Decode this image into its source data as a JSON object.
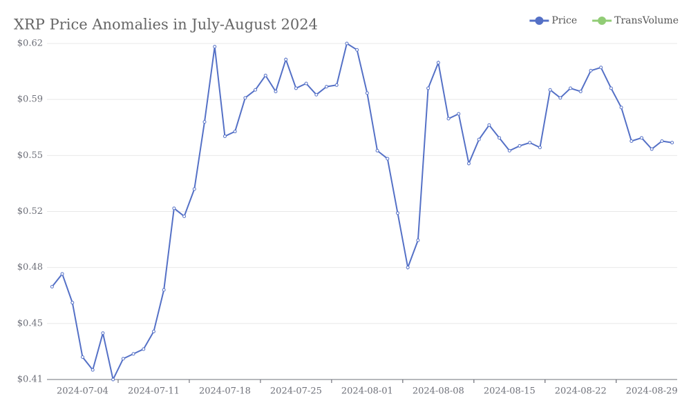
{
  "chart_data": {
    "type": "line",
    "title": "XRP Price Anomalies in July-August 2024",
    "categories": [
      null,
      null,
      null,
      "2024-07-04",
      null,
      null,
      null,
      null,
      null,
      null,
      "2024-07-11",
      null,
      null,
      null,
      null,
      null,
      null,
      "2024-07-18",
      null,
      null,
      null,
      null,
      null,
      null,
      "2024-07-25",
      null,
      null,
      null,
      null,
      null,
      null,
      "2024-08-01",
      null,
      null,
      null,
      null,
      null,
      null,
      "2024-08-08",
      null,
      null,
      null,
      null,
      null,
      null,
      "2024-08-15",
      null,
      null,
      null,
      null,
      null,
      null,
      "2024-08-22",
      null,
      null,
      null,
      null,
      null,
      null,
      "2024-08-29",
      null,
      null
    ],
    "series": [
      {
        "name": "Price",
        "color": "#5470c6",
        "values": [
          0.468,
          0.476,
          0.458,
          0.424,
          0.416,
          0.439,
          0.41,
          0.423,
          0.426,
          0.429,
          0.44,
          0.466,
          0.517,
          0.512,
          0.529,
          0.571,
          0.618,
          0.562,
          0.565,
          0.586,
          0.591,
          0.6,
          0.59,
          0.61,
          0.592,
          0.595,
          0.588,
          0.593,
          0.594,
          0.62,
          0.616,
          0.589,
          0.553,
          0.548,
          0.514,
          0.48,
          0.497,
          0.592,
          0.608,
          0.573,
          0.576,
          0.545,
          0.56,
          0.569,
          0.561,
          0.553,
          0.556,
          0.558,
          0.555,
          0.591,
          0.586,
          0.592,
          0.59,
          0.603,
          0.605,
          0.592,
          0.58,
          0.559,
          0.561,
          0.554,
          0.559,
          0.558
        ]
      },
      {
        "name": "TransVolume",
        "color": "#91cc75",
        "values": [
          null,
          null,
          null,
          null,
          null,
          null,
          null,
          null,
          null,
          null,
          null,
          null,
          null,
          null,
          null,
          null,
          null,
          null,
          null,
          null,
          null,
          null,
          null,
          null,
          null,
          null,
          null,
          null,
          null,
          null,
          null,
          null,
          null,
          null,
          null,
          null,
          null,
          null,
          null,
          null,
          null,
          null,
          null,
          null,
          null,
          null,
          null,
          null,
          null,
          null,
          null,
          null,
          null,
          null,
          null,
          null,
          null,
          null,
          null,
          null,
          null,
          null
        ]
      }
    ],
    "ylim": [
      0.41,
      0.62
    ],
    "yticks": [
      {
        "value": 0.41,
        "label": "$0.41"
      },
      {
        "value": 0.445,
        "label": "$0.45"
      },
      {
        "value": 0.48,
        "label": "$0.48"
      },
      {
        "value": 0.515,
        "label": "$0.52"
      },
      {
        "value": 0.55,
        "label": "$0.55"
      },
      {
        "value": 0.585,
        "label": "$0.59"
      },
      {
        "value": 0.62,
        "label": "$0.62"
      }
    ],
    "grid": true,
    "legend": "top-right"
  }
}
